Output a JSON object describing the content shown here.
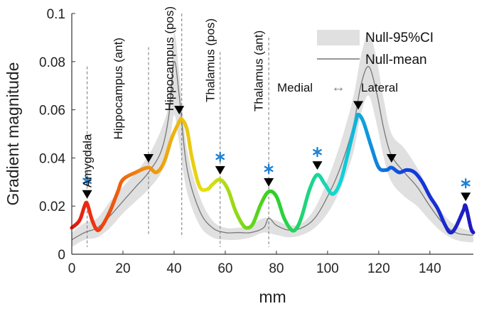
{
  "chart_data": {
    "type": "line",
    "title": "",
    "xlabel": "mm",
    "ylabel": "Gradient magnitude",
    "xlim": [
      0,
      157
    ],
    "ylim": [
      0,
      0.1
    ],
    "xticks": [
      0,
      20,
      40,
      60,
      80,
      100,
      120,
      140
    ],
    "yticks": [
      0,
      0.02,
      0.04,
      0.06,
      0.08,
      0.1
    ],
    "ytick_labels": [
      "0",
      "0.02",
      "0.04",
      "0.06",
      "0.08",
      "0.1"
    ],
    "grid": false,
    "legend_position": "top-right",
    "colormap": [
      "#e81010",
      "#f08010",
      "#e8e010",
      "#30d020",
      "#10d8d8",
      "#1040e0",
      "#2018c0"
    ],
    "series": [
      {
        "name": "Null-95%CI",
        "kind": "band",
        "color": "#e0e0e0",
        "x": [
          0,
          5,
          10,
          15,
          20,
          25,
          30,
          35,
          38,
          40,
          42,
          45,
          50,
          55,
          60,
          65,
          70,
          75,
          80,
          85,
          90,
          95,
          100,
          105,
          110,
          113,
          116,
          119,
          122,
          125,
          130,
          135,
          140,
          145,
          150,
          155,
          157
        ],
        "lower": [
          0.003,
          0.006,
          0.007,
          0.011,
          0.017,
          0.022,
          0.027,
          0.034,
          0.044,
          0.058,
          0.046,
          0.026,
          0.012,
          0.007,
          0.006,
          0.006,
          0.007,
          0.009,
          0.008,
          0.007,
          0.008,
          0.011,
          0.017,
          0.027,
          0.042,
          0.058,
          0.066,
          0.055,
          0.04,
          0.03,
          0.024,
          0.02,
          0.014,
          0.009,
          0.006,
          0.005,
          0.005
        ],
        "upper": [
          0.009,
          0.013,
          0.015,
          0.022,
          0.028,
          0.034,
          0.041,
          0.052,
          0.064,
          0.092,
          0.075,
          0.044,
          0.024,
          0.014,
          0.011,
          0.011,
          0.012,
          0.015,
          0.014,
          0.012,
          0.013,
          0.019,
          0.031,
          0.046,
          0.065,
          0.082,
          0.092,
          0.082,
          0.064,
          0.05,
          0.044,
          0.036,
          0.026,
          0.017,
          0.012,
          0.01,
          0.01
        ]
      },
      {
        "name": "Null-mean",
        "kind": "line",
        "color": "#777777",
        "x": [
          0,
          5,
          10,
          15,
          20,
          25,
          30,
          35,
          38,
          40,
          42,
          45,
          50,
          55,
          60,
          65,
          70,
          75,
          77,
          80,
          85,
          90,
          95,
          100,
          105,
          110,
          113,
          116,
          119,
          122,
          125,
          130,
          135,
          140,
          145,
          150,
          155,
          157
        ],
        "y": [
          0.006,
          0.009,
          0.011,
          0.016,
          0.022,
          0.028,
          0.034,
          0.043,
          0.058,
          0.08,
          0.066,
          0.036,
          0.018,
          0.011,
          0.009,
          0.009,
          0.009,
          0.011,
          0.015,
          0.012,
          0.01,
          0.011,
          0.015,
          0.024,
          0.036,
          0.053,
          0.07,
          0.078,
          0.068,
          0.052,
          0.041,
          0.034,
          0.028,
          0.02,
          0.013,
          0.009,
          0.008,
          0.008
        ]
      },
      {
        "name": "",
        "kind": "colored-line",
        "x": [
          0,
          3,
          5,
          6,
          8,
          10,
          12,
          15,
          18,
          20,
          25,
          30,
          33,
          36,
          39,
          42,
          43,
          45,
          47,
          50,
          53,
          55,
          58,
          61,
          64,
          67,
          69,
          71,
          74,
          77,
          80,
          83,
          86,
          88,
          90,
          93,
          96,
          99,
          102,
          105,
          108,
          111,
          112,
          114,
          117,
          120,
          123,
          125,
          128,
          131,
          134,
          137,
          140,
          143,
          146,
          148,
          150,
          153,
          154,
          156,
          157
        ],
        "y": [
          0.011,
          0.014,
          0.02,
          0.021,
          0.014,
          0.01,
          0.012,
          0.018,
          0.026,
          0.031,
          0.034,
          0.036,
          0.034,
          0.038,
          0.048,
          0.055,
          0.056,
          0.052,
          0.04,
          0.028,
          0.027,
          0.029,
          0.031,
          0.027,
          0.018,
          0.012,
          0.011,
          0.013,
          0.021,
          0.026,
          0.024,
          0.015,
          0.01,
          0.011,
          0.016,
          0.027,
          0.033,
          0.029,
          0.025,
          0.03,
          0.042,
          0.055,
          0.058,
          0.055,
          0.045,
          0.036,
          0.035,
          0.036,
          0.034,
          0.035,
          0.034,
          0.03,
          0.024,
          0.019,
          0.012,
          0.009,
          0.011,
          0.018,
          0.02,
          0.011,
          0.009
        ]
      }
    ],
    "peaks": [
      {
        "x": 6,
        "y": 0.021,
        "star": true
      },
      {
        "x": 30,
        "y": 0.036,
        "star": false
      },
      {
        "x": 42,
        "y": 0.056,
        "star": false
      },
      {
        "x": 58,
        "y": 0.031,
        "star": true
      },
      {
        "x": 77,
        "y": 0.026,
        "star": true
      },
      {
        "x": 96,
        "y": 0.033,
        "star": true
      },
      {
        "x": 112,
        "y": 0.058,
        "star": false
      },
      {
        "x": 125,
        "y": 0.036,
        "star": false
      },
      {
        "x": 154,
        "y": 0.02,
        "star": true
      }
    ],
    "star_color": "#1f82d6",
    "boundaries": [
      {
        "x": 6,
        "ymin": 0.003,
        "ymax": 0.078
      },
      {
        "x": 30,
        "ymin": 0.008,
        "ymax": 0.086
      },
      {
        "x": 43,
        "ymin": 0.007,
        "ymax": 0.1
      },
      {
        "x": 58,
        "ymin": 0.003,
        "ymax": 0.084
      },
      {
        "x": 77,
        "ymin": 0.003,
        "ymax": 0.09
      }
    ],
    "region_labels": [
      {
        "text": "Amygdala",
        "x": 6,
        "y": 0.05
      },
      {
        "text": "Hippocampus (ant)",
        "x": 18,
        "y": 0.09
      },
      {
        "text": "Hippocampus (pos)",
        "x": 38,
        "y": 0.103
      },
      {
        "text": "Thalamus (pos)",
        "x": 54,
        "y": 0.098
      },
      {
        "text": "Thalamus (ant)",
        "x": 73,
        "y": 0.093
      }
    ],
    "direction": {
      "left": "Medial",
      "right": "Lateral",
      "arrow": "↔"
    },
    "legend": [
      {
        "label": "Null-95%CI",
        "kind": "band",
        "color": "#e0e0e0"
      },
      {
        "label": "Null-mean",
        "kind": "line",
        "color": "#777777"
      }
    ]
  }
}
